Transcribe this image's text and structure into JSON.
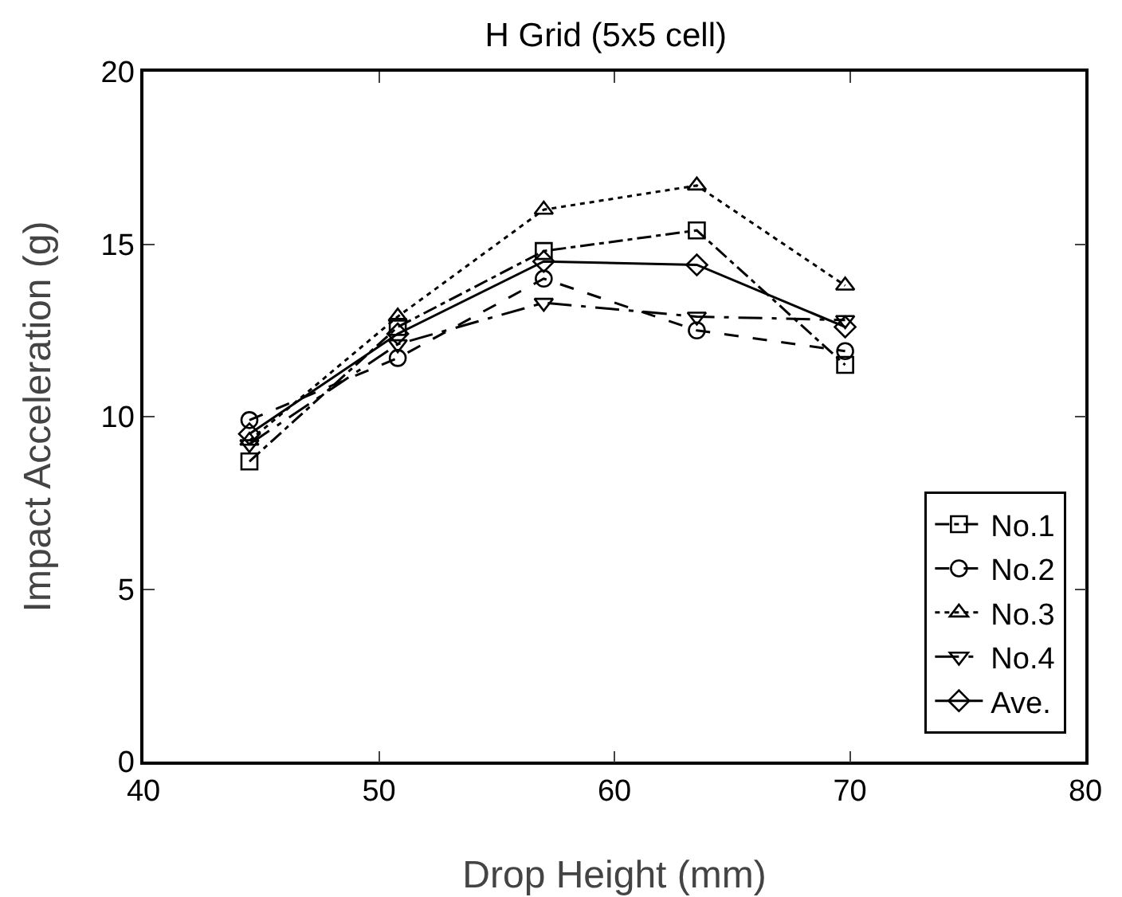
{
  "chart_data": {
    "type": "line",
    "title": "H Grid (5x5 cell)",
    "xlabel": "Drop Height (mm)",
    "ylabel": "Impact Acceleration (g)",
    "x": [
      44.5,
      50.8,
      57,
      63.5,
      69.8
    ],
    "series": [
      {
        "name": "No.1",
        "color": "#000000",
        "marker": "square",
        "line_style": "dashdot",
        "values": [
          8.7,
          12.6,
          14.8,
          15.4,
          11.5
        ]
      },
      {
        "name": "No.2",
        "color": "#000000",
        "marker": "circle",
        "line_style": "dashed",
        "values": [
          9.9,
          11.7,
          14.0,
          12.5,
          11.9
        ]
      },
      {
        "name": "No.3",
        "color": "#000000",
        "marker": "triangle",
        "line_style": "dotted",
        "values": [
          9.3,
          12.9,
          16.0,
          16.7,
          13.8
        ]
      },
      {
        "name": "No.4",
        "color": "#000000",
        "marker": "triangle-down",
        "line_style": "longdashdot",
        "values": [
          9.2,
          12.1,
          13.3,
          12.9,
          12.8
        ]
      },
      {
        "name": "Ave.",
        "color": "#000000",
        "marker": "diamond",
        "line_style": "solid",
        "values": [
          9.5,
          12.4,
          14.5,
          14.4,
          12.6
        ]
      }
    ],
    "xlim": [
      40,
      80
    ],
    "xticks": [
      40,
      50,
      60,
      70,
      80
    ],
    "ylim": [
      0,
      20
    ],
    "yticks": [
      0,
      5,
      10,
      15,
      20
    ],
    "grid": false,
    "legend": "bottom right"
  }
}
